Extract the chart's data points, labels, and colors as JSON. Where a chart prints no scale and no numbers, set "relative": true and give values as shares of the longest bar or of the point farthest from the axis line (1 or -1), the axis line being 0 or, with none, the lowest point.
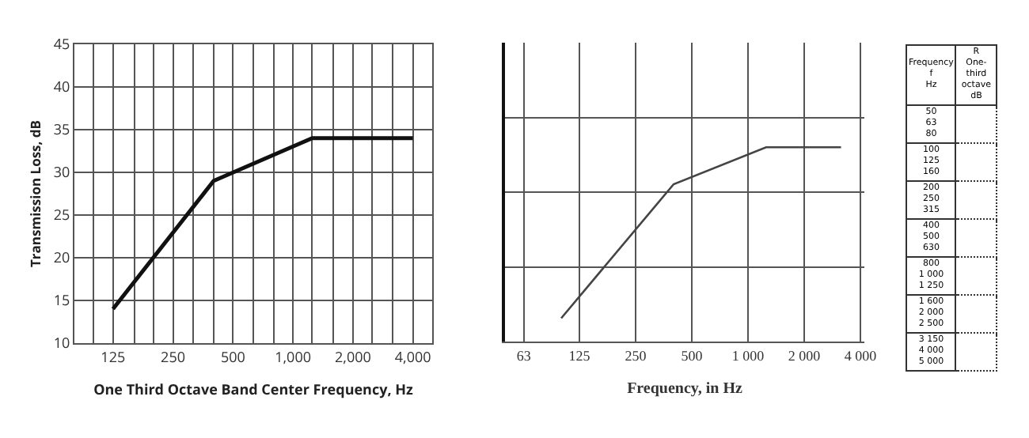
{
  "chart_data": [
    {
      "type": "line",
      "xlabel": "One Third Octave Band Center Frequency, Hz",
      "ylabel": "Transmission Loss, dB",
      "log": "x",
      "grid": true,
      "marker": "none",
      "line_style": "solid",
      "x": [
        125,
        400,
        1250,
        4000
      ],
      "series": [
        {
          "color": "#111111",
          "values": [
            14,
            29,
            34,
            34
          ]
        }
      ],
      "xlim": [
        80,
        5000
      ],
      "xticks": [
        {
          "value": 100,
          "label": null
        },
        125,
        {
          "value": 160,
          "label": null
        },
        {
          "value": 200,
          "label": null
        },
        250,
        {
          "value": 315,
          "label": null
        },
        {
          "value": 400,
          "label": null
        },
        500,
        {
          "value": 630,
          "label": null
        },
        {
          "value": 800,
          "label": null
        },
        {
          "value": 1000,
          "label": "1,000"
        },
        {
          "value": 1250,
          "label": null
        },
        {
          "value": 1600,
          "label": null
        },
        {
          "value": 2000,
          "label": "2,000"
        },
        {
          "value": 2500,
          "label": null
        },
        {
          "value": 3150,
          "label": null
        },
        {
          "value": 4000,
          "label": "4,000"
        }
      ],
      "ylim": [
        10,
        45
      ],
      "yticks": [
        10,
        15,
        20,
        25,
        30,
        35,
        40,
        45
      ]
    },
    {
      "type": "line",
      "xlabel": "Frequency, in Hz",
      "log": "x",
      "grid": true,
      "relative": true,
      "marker": "none",
      "line_style": "solid",
      "tick_labels": "x",
      "x": [
        100,
        400,
        1250,
        3150
      ],
      "series": [
        {
          "color": "#444444",
          "values": [
            0.12,
            0.81,
            1,
            1
          ]
        }
      ],
      "xlim": [
        50,
        4200
      ],
      "xticks": [
        63,
        125,
        250,
        500,
        {
          "value": 1000,
          "label": "1 000"
        },
        {
          "value": 2000,
          "label": "2 000"
        },
        {
          "value": 4000,
          "label": "4 000"
        }
      ]
    },
    {
      "type": "other",
      "categories": [
        "Frequency\nf\nHz",
        "R\nOne-third\noctave\ndB"
      ],
      "annotations": [
        "50\n63\n80",
        "100\n125\n160",
        "200\n250\n315",
        "400\n500\n630",
        "800\n1 000\n1 250",
        "1 600\n2 000\n2 500",
        "3 150\n4 000\n5 000"
      ]
    }
  ]
}
